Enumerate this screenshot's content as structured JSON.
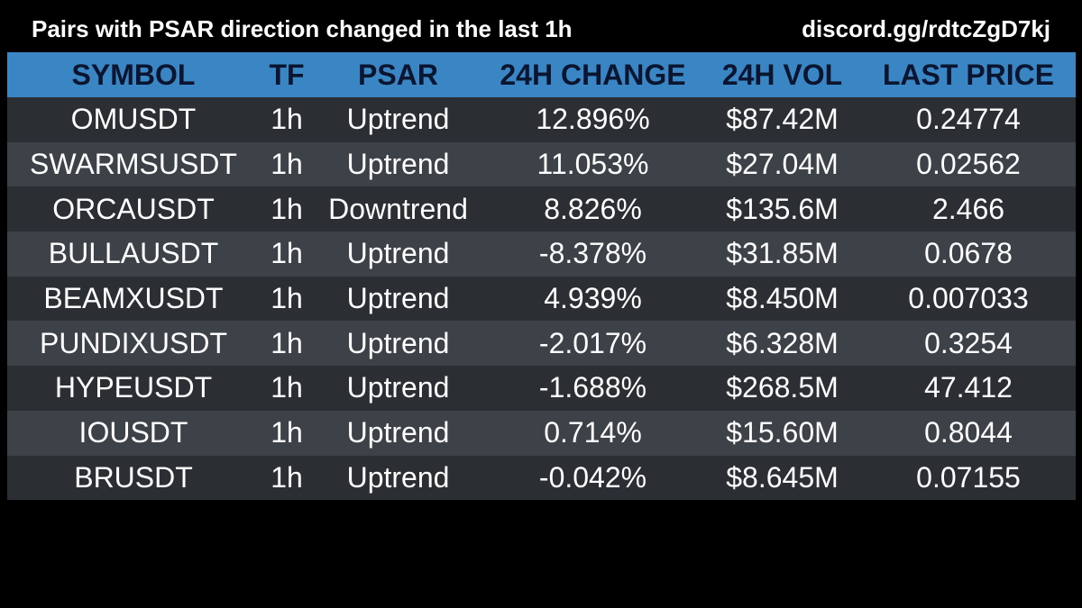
{
  "header": {
    "title": "Pairs with PSAR direction changed in the last 1h",
    "link": "discord.gg/rdtcZgD7kj"
  },
  "colors": {
    "background": "#000000",
    "header_row": "#3a86c4",
    "header_text": "#0b1530",
    "row_dark": "#2b2f33",
    "row_light": "#3c4247",
    "cell_text": "#ffffff"
  },
  "table": {
    "columns": [
      "SYMBOL",
      "TF",
      "PSAR",
      "24H CHANGE",
      "24H VOL",
      "LAST PRICE"
    ],
    "rows": [
      [
        "OMUSDT",
        "1h",
        "Uptrend",
        "12.896%",
        "$87.42M",
        "0.24774"
      ],
      [
        "SWARMSUSDT",
        "1h",
        "Uptrend",
        "11.053%",
        "$27.04M",
        "0.02562"
      ],
      [
        "ORCAUSDT",
        "1h",
        "Downtrend",
        "8.826%",
        "$135.6M",
        "2.466"
      ],
      [
        "BULLAUSDT",
        "1h",
        "Uptrend",
        "-8.378%",
        "$31.85M",
        "0.0678"
      ],
      [
        "BEAMXUSDT",
        "1h",
        "Uptrend",
        "4.939%",
        "$8.450M",
        "0.007033"
      ],
      [
        "PUNDIXUSDT",
        "1h",
        "Uptrend",
        "-2.017%",
        "$6.328M",
        "0.3254"
      ],
      [
        "HYPEUSDT",
        "1h",
        "Uptrend",
        "-1.688%",
        "$268.5M",
        "47.412"
      ],
      [
        "IOUSDT",
        "1h",
        "Uptrend",
        "0.714%",
        "$15.60M",
        "0.8044"
      ],
      [
        "BRUSDT",
        "1h",
        "Uptrend",
        "-0.042%",
        "$8.645M",
        "0.07155"
      ]
    ]
  }
}
